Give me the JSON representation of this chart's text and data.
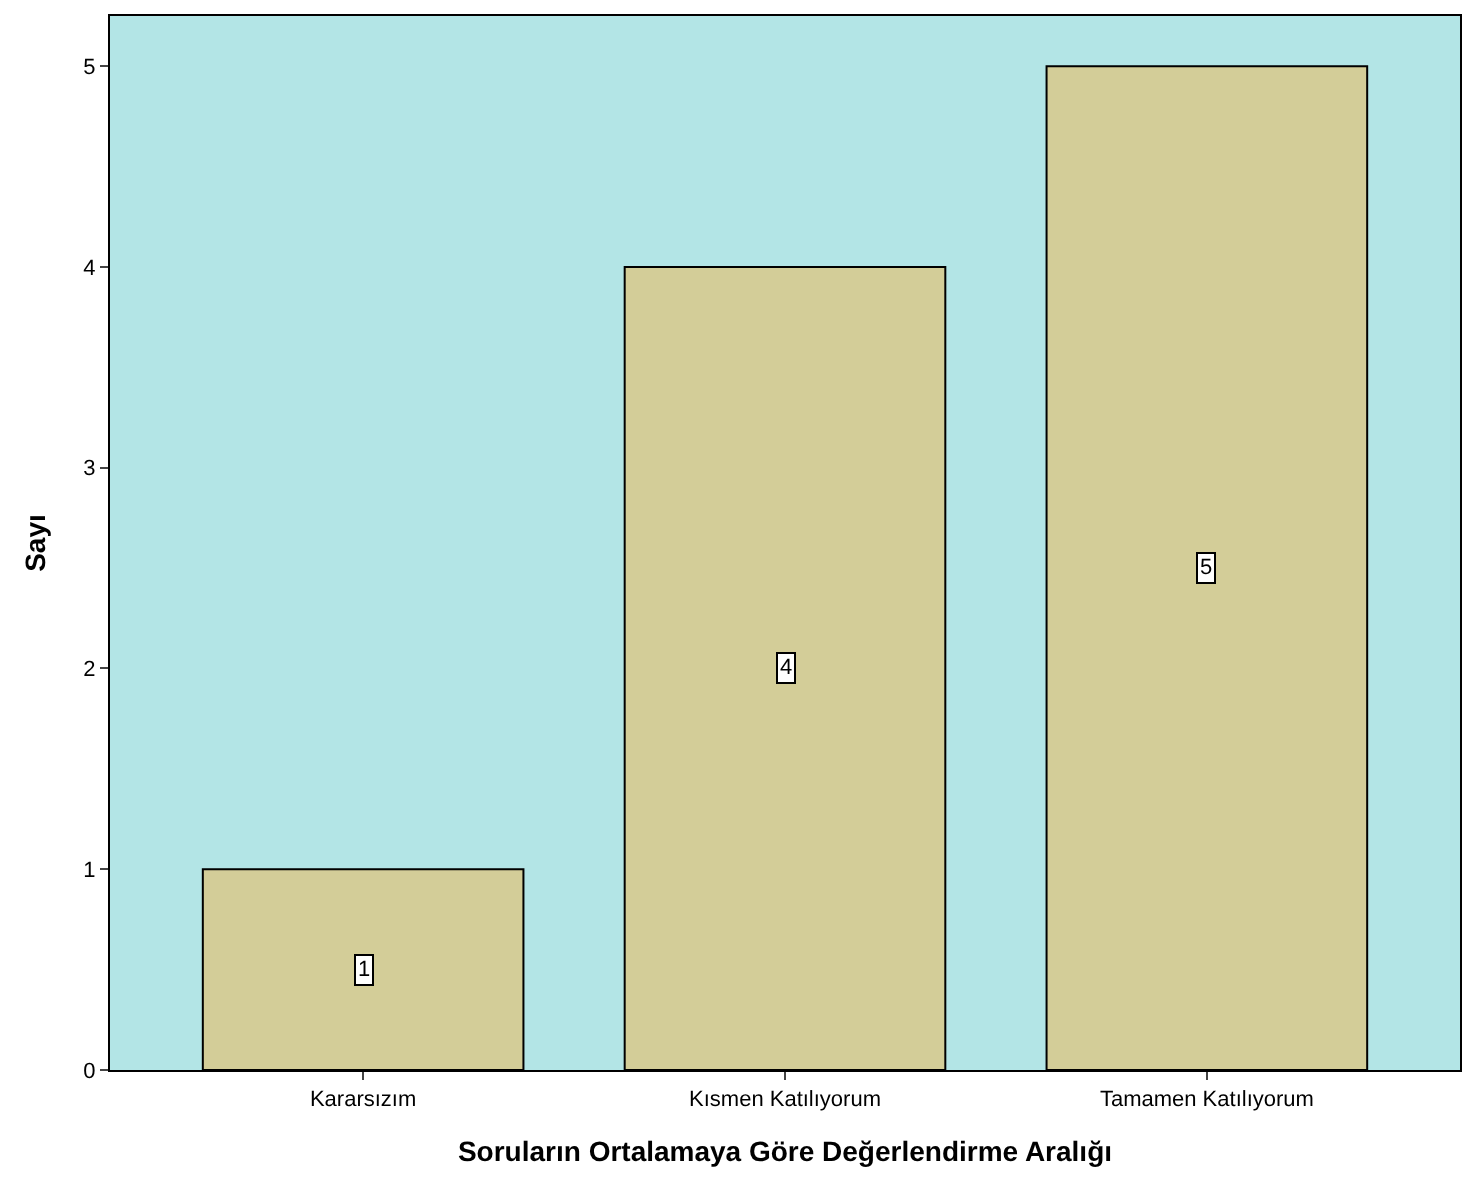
{
  "chart_data": {
    "type": "bar",
    "xlabel": "Soruların Ortalamaya Göre Değerlendirme Aralığı",
    "ylabel": "Sayı",
    "categories": [
      "Kararsızım",
      "Kısmen Katılıyorum",
      "Tamamen Katılıyorum"
    ],
    "values": [
      1,
      4,
      5
    ],
    "color": "#d3cd98",
    "ylim": [
      0,
      5.25
    ],
    "yticks": [
      0,
      1,
      2,
      3,
      4,
      5
    ],
    "grid": false,
    "data_labels": true
  }
}
